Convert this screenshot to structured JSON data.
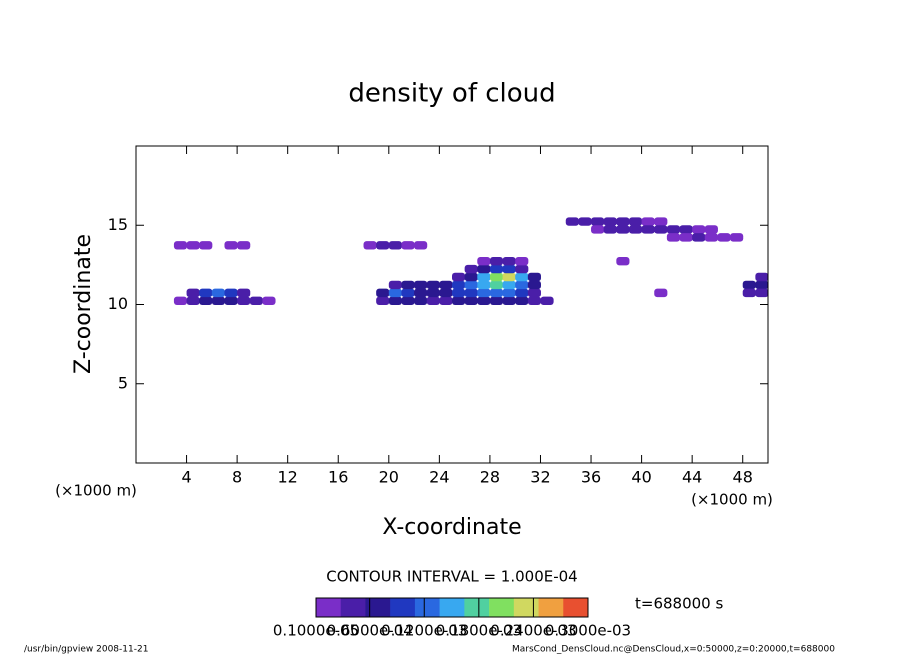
{
  "chart_data": {
    "type": "contour",
    "title": "density of cloud",
    "x_label": "X-coordinate",
    "y_label": "Z-coordinate",
    "x_unit": "(×1000 m)",
    "y_unit": "(×1000 m)",
    "xlim": [
      0,
      50
    ],
    "ylim": [
      0,
      20
    ],
    "xticks": [
      4,
      8,
      12,
      16,
      20,
      24,
      28,
      32,
      36,
      40,
      44,
      48
    ],
    "yticks": [
      5,
      10,
      15
    ],
    "contour_interval": "CONTOUR INTERVAL = 1.000E-04",
    "time_label": "t=688000 s",
    "footer_left": "/usr/bin/gpview  2008-11-21",
    "footer_right": "MarsCond_DensCloud.nc@DensCloud,x=0:50000,z=0:20000,t=688000",
    "clim": [
      1e-06,
      0.0003
    ],
    "colormap": [
      "#7a2ec8",
      "#4a1ea8",
      "#2a1890",
      "#2038c0",
      "#2a68e0",
      "#38a8f0",
      "#50d0a0",
      "#80e060",
      "#d0d860",
      "#f0a040",
      "#e85030"
    ],
    "colorbar_ticks": [
      {
        "value": 1e-06,
        "label": "0.1000e-05"
      },
      {
        "value": 6e-05,
        "label": "0.6000e-04"
      },
      {
        "value": 0.00012,
        "label": "0.1200e-03"
      },
      {
        "value": 0.00018,
        "label": "0.1800e-03"
      },
      {
        "value": 0.00024,
        "label": "0.2400e-03"
      },
      {
        "value": 0.0003,
        "label": "0.3000e-03"
      }
    ],
    "cells": {
      "x": [
        3,
        4,
        5,
        6,
        7,
        8,
        9,
        10,
        4,
        5,
        6,
        7,
        8,
        3,
        4,
        5,
        7,
        8,
        19,
        20,
        21,
        22,
        23,
        24,
        25,
        26,
        27,
        28,
        29,
        30,
        31,
        32,
        19,
        20,
        21,
        22,
        23,
        24,
        25,
        26,
        27,
        28,
        29,
        30,
        31,
        20,
        21,
        22,
        23,
        24,
        25,
        26,
        27,
        28,
        29,
        30,
        31,
        25,
        26,
        27,
        28,
        29,
        30,
        31,
        26,
        27,
        28,
        29,
        30,
        27,
        28,
        29,
        30,
        18,
        19,
        20,
        21,
        22,
        34,
        35,
        36,
        37,
        38,
        39,
        40,
        41,
        36,
        37,
        38,
        39,
        40,
        41,
        42,
        43,
        44,
        45,
        42,
        43,
        44,
        45,
        46,
        47,
        38,
        41,
        48,
        49,
        48,
        49,
        49
      ],
      "z": [
        10,
        10,
        10,
        10,
        10,
        10,
        10,
        10,
        10.5,
        10.5,
        10.5,
        10.5,
        10.5,
        13.5,
        13.5,
        13.5,
        13.5,
        13.5,
        10,
        10,
        10,
        10,
        10,
        10,
        10,
        10,
        10,
        10,
        10,
        10,
        10,
        10,
        10.5,
        10.5,
        10.5,
        10.5,
        10.5,
        10.5,
        10.5,
        10.5,
        10.5,
        10.5,
        10.5,
        10.5,
        10.5,
        11,
        11,
        11,
        11,
        11,
        11,
        11,
        11,
        11,
        11,
        11,
        11,
        11.5,
        11.5,
        11.5,
        11.5,
        11.5,
        11.5,
        11.5,
        12,
        12,
        12,
        12,
        12,
        12.5,
        12.5,
        12.5,
        12.5,
        13.5,
        13.5,
        13.5,
        13.5,
        13.5,
        15,
        15,
        15,
        15,
        15,
        15,
        15,
        15,
        14.5,
        14.5,
        14.5,
        14.5,
        14.5,
        14.5,
        14.5,
        14.5,
        14.5,
        14.5,
        14,
        14,
        14,
        14,
        14,
        14,
        12.5,
        10.5,
        11,
        11,
        10.5,
        10.5,
        11.5
      ],
      "values": [
        2e-05,
        5e-05,
        8e-05,
        8e-05,
        6e-05,
        5e-05,
        3e-05,
        2e-05,
        4e-05,
        0.0001,
        0.00012,
        9e-05,
        5e-05,
        1e-05,
        2e-05,
        1e-05,
        2e-05,
        2e-05,
        5e-05,
        8e-05,
        6e-05,
        6e-05,
        5e-05,
        5e-05,
        6e-05,
        7e-05,
        8e-05,
        8e-05,
        7e-05,
        6e-05,
        5e-05,
        3e-05,
        8e-05,
        0.00012,
        9e-05,
        8e-05,
        7e-05,
        8e-05,
        9e-05,
        0.0001,
        0.00011,
        0.00012,
        0.00011,
        9e-05,
        5e-05,
        5e-05,
        6e-05,
        6e-05,
        6e-05,
        8e-05,
        9e-05,
        0.00012,
        0.00015,
        0.00018,
        0.00016,
        0.00012,
        6e-05,
        4e-05,
        8e-05,
        0.00014,
        0.0002,
        0.00022,
        0.00016,
        6e-05,
        3e-05,
        6e-05,
        0.0001,
        0.0001,
        5e-05,
        2e-05,
        3e-05,
        3e-05,
        2e-05,
        2e-05,
        3e-05,
        3e-05,
        2e-05,
        1e-05,
        3e-05,
        4e-05,
        4e-05,
        3e-05,
        3e-05,
        3e-05,
        2e-05,
        2e-05,
        2e-05,
        3e-05,
        3e-05,
        3e-05,
        4e-05,
        4e-05,
        3e-05,
        3e-05,
        2e-05,
        1e-05,
        2e-05,
        2e-05,
        3e-05,
        2e-05,
        1e-05,
        1e-05,
        2e-05,
        1e-05,
        6e-05,
        8e-05,
        3e-05,
        5e-05,
        3e-05
      ]
    }
  }
}
